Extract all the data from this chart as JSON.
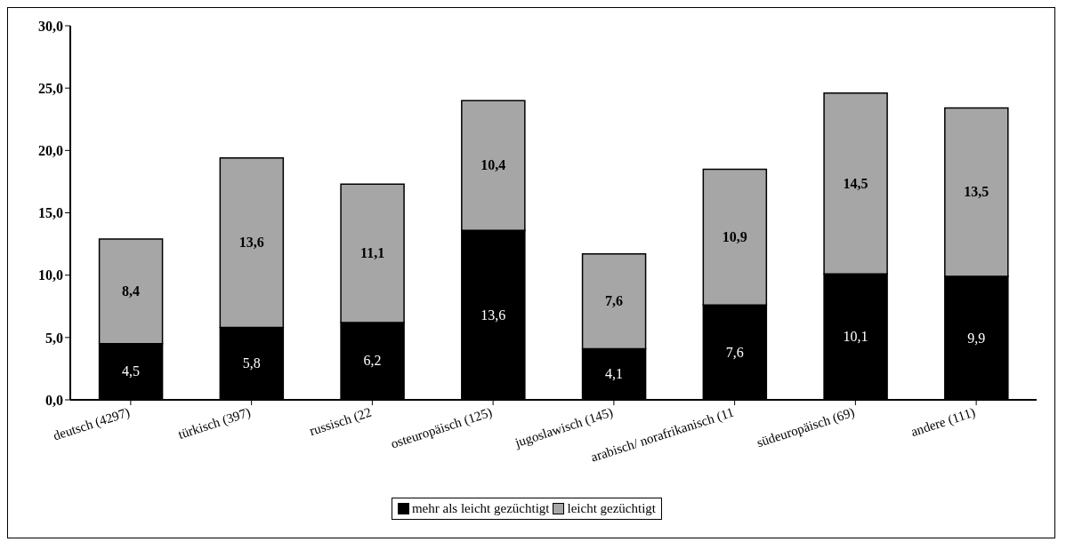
{
  "chart_data": {
    "type": "bar",
    "stacked": true,
    "categories": [
      "deutsch (4297)",
      "türkisch (397)",
      "russisch (22",
      "osteuropäisch (125)",
      "jugoslawisch (145)",
      "arabisch/ norafrikanisch (11",
      "südeuropäisch (69)",
      "andere (111)"
    ],
    "series": [
      {
        "name": "mehr als leicht gezüchtigt",
        "color": "#000000",
        "values": [
          4.5,
          5.8,
          6.2,
          13.6,
          4.1,
          7.6,
          10.1,
          9.9
        ],
        "value_labels": [
          "4,5",
          "5,8",
          "6,2",
          "13,6",
          "4,1",
          "7,6",
          "10,1",
          "9,9"
        ]
      },
      {
        "name": "leicht gezüchtigt",
        "color": "#a6a6a6",
        "values": [
          8.4,
          13.6,
          11.1,
          10.4,
          7.6,
          10.9,
          14.5,
          13.5
        ],
        "value_labels": [
          "8,4",
          "13,6",
          "11,1",
          "10,4",
          "7,6",
          "10,9",
          "14,5",
          "13,5"
        ]
      }
    ],
    "ylim": [
      0,
      30
    ],
    "yticks": [
      {
        "value": 0,
        "label": "0,0"
      },
      {
        "value": 5,
        "label": "5,0"
      },
      {
        "value": 10,
        "label": "10,0"
      },
      {
        "value": 15,
        "label": "15,0"
      },
      {
        "value": 20,
        "label": "20,0"
      },
      {
        "value": 25,
        "label": "25,0"
      },
      {
        "value": 30,
        "label": "30,0"
      }
    ],
    "grid": false,
    "legend": "bottom"
  }
}
